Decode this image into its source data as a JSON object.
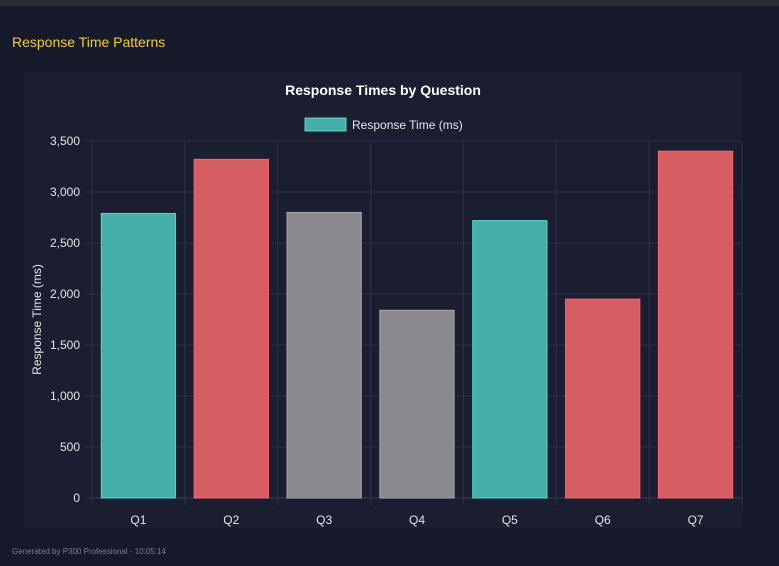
{
  "section_title": "Response Time Patterns",
  "footer": "Generated by P300 Professional - 10:05:14",
  "colors": {
    "teal": "#45b0a9",
    "red": "#d65e62",
    "gray": "#8a898d",
    "title": "#f5cc2a"
  },
  "chart_data": {
    "type": "bar",
    "title": "Response Times by Question",
    "legend": {
      "label": "Response Time (ms)",
      "placement": "top"
    },
    "ylabel": "Response Time (ms)",
    "xlabel": "",
    "ylim": [
      0,
      3500
    ],
    "yticks": [
      0,
      500,
      1000,
      1500,
      2000,
      2500,
      3000,
      3500
    ],
    "ytick_labels": [
      "0",
      "500",
      "1,000",
      "1,500",
      "2,000",
      "2,500",
      "3,000",
      "3,500"
    ],
    "grid": true,
    "categories": [
      "Q1",
      "Q2",
      "Q3",
      "Q4",
      "Q5",
      "Q6",
      "Q7"
    ],
    "values": [
      2790,
      3320,
      2800,
      1840,
      2720,
      1950,
      3400
    ],
    "bar_colors": [
      "teal",
      "red",
      "gray",
      "gray",
      "teal",
      "red",
      "red"
    ]
  }
}
